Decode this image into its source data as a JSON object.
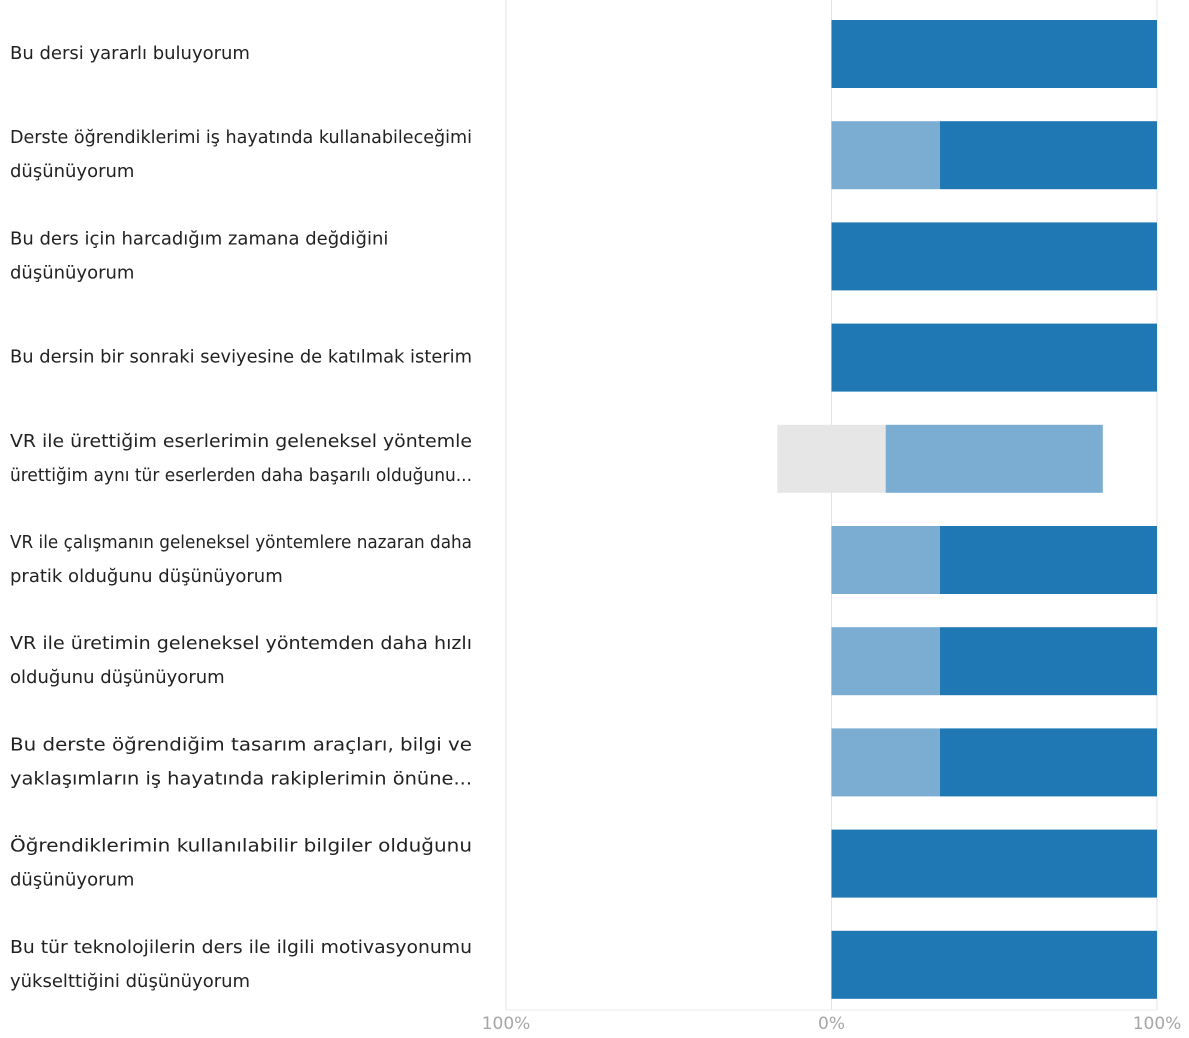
{
  "chart_data": {
    "type": "bar",
    "orientation": "horizontal-diverging-stacked",
    "categories": [
      [
        "Bu dersi yararlı buluyorum"
      ],
      [
        "Derste öğrendiklerimi iş hayatında kullanabileceğimi",
        "düşünüyorum"
      ],
      [
        "Bu ders için harcadığım zamana değdiğini",
        "düşünüyorum"
      ],
      [
        "Bu dersin bir sonraki seviyesine de katılmak isterim"
      ],
      [
        "VR ile ürettiğim eserlerimin geleneksel yöntemle",
        "ürettiğim aynı tür eserlerden daha başarılı olduğunu..."
      ],
      [
        "VR ile çalışmanın geleneksel yöntemlere nazaran daha",
        "pratik olduğunu düşünüyorum"
      ],
      [
        "VR ile üretimin geleneksel yöntemden daha hızlı",
        "olduğunu düşünüyorum"
      ],
      [
        "Bu derste öğrendiğim tasarım araçları, bilgi ve",
        "yaklaşımların iş hayatında rakiplerimin önüne..."
      ],
      [
        "Öğrendiklerimin kullanılabilir bilgiler olduğunu",
        "düşünüyorum"
      ],
      [
        "Bu tür teknolojilerin ders ile ilgili motivasyonumu",
        "yükselttiğini düşünüyorum"
      ]
    ],
    "series": [
      {
        "role": "neutral",
        "color": "#e6e6e6",
        "values": [
          0,
          0,
          0,
          0,
          33.3,
          0,
          0,
          0,
          0,
          0
        ]
      },
      {
        "role": "agree",
        "color": "#7badd3",
        "values": [
          0,
          33.3,
          0,
          0,
          66.7,
          33.3,
          33.3,
          33.3,
          0,
          0
        ]
      },
      {
        "role": "strongly-agree",
        "color": "#1f77b4",
        "values": [
          100,
          66.7,
          100,
          100,
          0,
          66.7,
          66.7,
          66.7,
          100,
          100
        ]
      }
    ],
    "xlim": [
      -100,
      100
    ],
    "xticks": [
      "100%",
      "0%",
      "100%"
    ],
    "grid": "vertical",
    "legend": "none"
  }
}
